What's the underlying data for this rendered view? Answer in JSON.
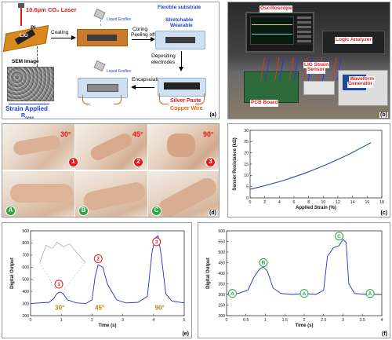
{
  "panel_a": {
    "laser": "10.6μm CO₂ Laser",
    "pi": "PI",
    "lig": "LIG",
    "coating": "Coating",
    "liquid_ecoflex_1": "Liquid Ecoflex",
    "curing": "Curing",
    "peeling": "Peeling off",
    "flexible_substrate": "Flexible substrate",
    "stretchable": "Stretchable",
    "wearable": "Wearable",
    "sem": "SEM Image",
    "depositing_1": "Depositing",
    "depositing_2": "electrodes",
    "liquid_ecoflex_2": "Liquid Ecoflex",
    "encapsulation": "Encapsulation",
    "silver_paste": "Silver Paste",
    "copper_wire": "Copper Wire",
    "strain_applied": "Strain Applied",
    "r_sens": "R",
    "r_sub": "sens",
    "label": "(a)"
  },
  "panel_b": {
    "oscilloscope": "Oscilloscope",
    "logic_analyzer": "Logic Analyzer",
    "lig_1": "LIG Strain",
    "lig_2": "Sensor",
    "waveform_1": "Waveform",
    "waveform_2": "Generator",
    "pcb": "PCB Board",
    "label": "(b)"
  },
  "panel_d": {
    "nums": [
      "1",
      "2",
      "3"
    ],
    "angles": [
      "30°",
      "45°",
      "90°"
    ],
    "letters": [
      "A",
      "B",
      "C"
    ],
    "label": "(d)"
  },
  "panel_c": {
    "label": "(c)",
    "chart_data": {
      "type": "line",
      "xlabel": "Applied Strain (%)",
      "ylabel": "Sensor Resistance (kΩ)",
      "xlim": [
        0,
        18
      ],
      "ylim": [
        0,
        30
      ],
      "xticks": [
        "0",
        "2",
        "4",
        "6",
        "8",
        "10",
        "12",
        "14",
        "16",
        "18"
      ],
      "yticks": [
        "0",
        "5",
        "10",
        "15",
        "20",
        "25",
        "30"
      ],
      "x": [
        0,
        1,
        2,
        3,
        4,
        5,
        6,
        7,
        8,
        9,
        10,
        11,
        12,
        13,
        14,
        15,
        16,
        16.5
      ],
      "y": [
        3.8,
        4.6,
        5.4,
        6.3,
        7.2,
        8.2,
        9.3,
        10.4,
        11.6,
        12.9,
        14.2,
        15.6,
        17.1,
        18.6,
        20.2,
        21.9,
        23.6,
        24.6
      ],
      "color": "#1f4e9e"
    }
  },
  "panel_e": {
    "label": "(e)",
    "markers": [
      "1",
      "2",
      "3"
    ],
    "angles": [
      "30°",
      "45°",
      "90°"
    ],
    "chart_data": {
      "type": "line",
      "xlabel": "Time (s)",
      "ylabel": "Digital Output",
      "xlim": [
        0,
        5
      ],
      "ylim": [
        200,
        900
      ],
      "xticks": [
        "0",
        "1",
        "2",
        "3",
        "4",
        "5"
      ],
      "yticks": [
        "200",
        "300",
        "400",
        "500",
        "600",
        "700",
        "800",
        "900"
      ],
      "x": [
        0,
        0.3,
        0.6,
        0.75,
        0.85,
        0.95,
        1.05,
        1.2,
        1.5,
        1.8,
        2.0,
        2.1,
        2.2,
        2.35,
        2.5,
        2.8,
        3.1,
        3.5,
        3.8,
        3.95,
        4.05,
        4.15,
        4.25,
        4.4,
        4.6,
        5.0
      ],
      "y": [
        300,
        305,
        310,
        340,
        380,
        395,
        385,
        330,
        305,
        300,
        330,
        520,
        620,
        600,
        460,
        330,
        305,
        310,
        360,
        720,
        840,
        860,
        700,
        380,
        320,
        305
      ],
      "color": "#1f2fd0"
    }
  },
  "panel_f": {
    "label": "(f)",
    "markers": [
      "A",
      "B",
      "A",
      "C",
      "A"
    ],
    "chart_data": {
      "type": "line",
      "xlabel": "Time (s)",
      "ylabel": "Digital Output",
      "xlim": [
        0,
        4
      ],
      "ylim": [
        200,
        600
      ],
      "xticks": [
        "0",
        "0.5",
        "1",
        "1.5",
        "2",
        "2.5",
        "3",
        "3.5",
        "4"
      ],
      "yticks": [
        "200",
        "250",
        "300",
        "350",
        "400",
        "450",
        "500",
        "550",
        "600"
      ],
      "x": [
        0,
        0.3,
        0.55,
        0.7,
        0.85,
        0.95,
        1.05,
        1.2,
        1.4,
        1.7,
        2.0,
        2.3,
        2.5,
        2.6,
        2.75,
        2.9,
        3.0,
        3.08,
        3.15,
        3.3,
        3.6,
        4.0
      ],
      "y": [
        300,
        305,
        320,
        380,
        420,
        430,
        410,
        330,
        305,
        300,
        305,
        300,
        320,
        480,
        520,
        530,
        560,
        545,
        350,
        305,
        300,
        300
      ],
      "color": "#1f2fd0"
    }
  }
}
